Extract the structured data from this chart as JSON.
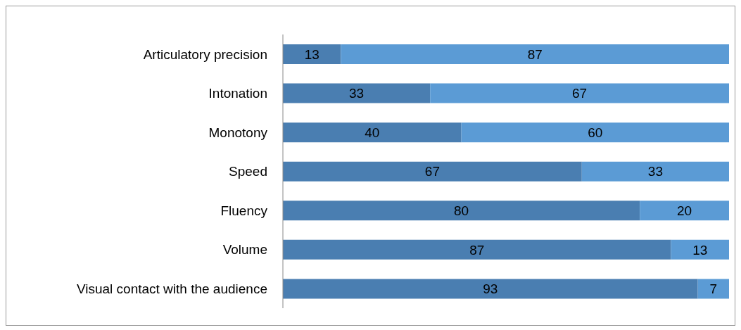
{
  "chart_data": {
    "type": "bar",
    "orientation": "horizontal",
    "stacked": true,
    "data_labels": true,
    "grid": false,
    "legend": false,
    "categories": [
      "Articulatory precision",
      "Intonation",
      "Monotony",
      "Speed",
      "Fluency",
      "Volume",
      "Visual contact with the audience"
    ],
    "series": [
      {
        "color": "#4a7eb1",
        "values": [
          13,
          33,
          40,
          67,
          80,
          87,
          93
        ]
      },
      {
        "color": "#5b9bd5",
        "values": [
          87,
          67,
          60,
          33,
          20,
          13,
          7
        ]
      }
    ]
  }
}
